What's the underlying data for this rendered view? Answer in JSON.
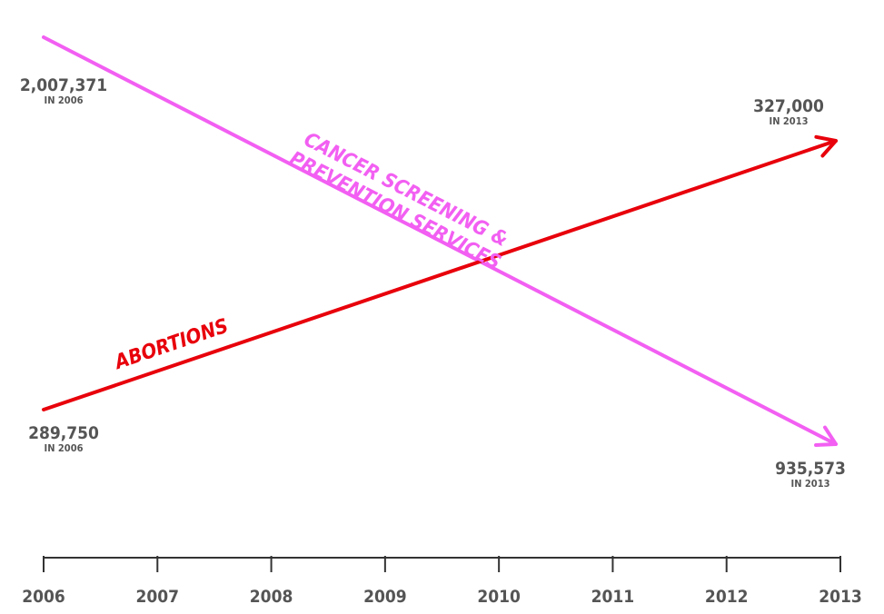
{
  "chart_data": {
    "type": "line",
    "title": "",
    "xlabel": "",
    "ylabel": "",
    "x": [
      2006,
      2007,
      2008,
      2009,
      2010,
      2011,
      2012,
      2013
    ],
    "x_tick_labels": [
      "2006",
      "2007",
      "2008",
      "2009",
      "2010",
      "2011",
      "2012",
      "2013"
    ],
    "grid": false,
    "y_axis_visible": false,
    "series": [
      {
        "name": "CANCER SCREENING & PREVENTION SERVICES",
        "name_lines": [
          "CANCER SCREENING &",
          "PREVENTION SERVICES"
        ],
        "color": "#f25ff2",
        "points": [
          [
            2006,
            2007371
          ],
          [
            2013,
            935573
          ]
        ],
        "start_label": {
          "value": "2,007,371",
          "note": "IN 2006"
        },
        "end_label": {
          "value": "935,573",
          "note": "IN 2013"
        }
      },
      {
        "name": "ABORTIONS",
        "name_lines": [
          "ABORTIONS"
        ],
        "color": "#e8000b",
        "points": [
          [
            2006,
            289750
          ],
          [
            2013,
            327000
          ]
        ],
        "start_label": {
          "value": "289,750",
          "note": "IN 2006"
        },
        "end_label": {
          "value": "327,000",
          "note": "IN 2013"
        }
      }
    ]
  }
}
